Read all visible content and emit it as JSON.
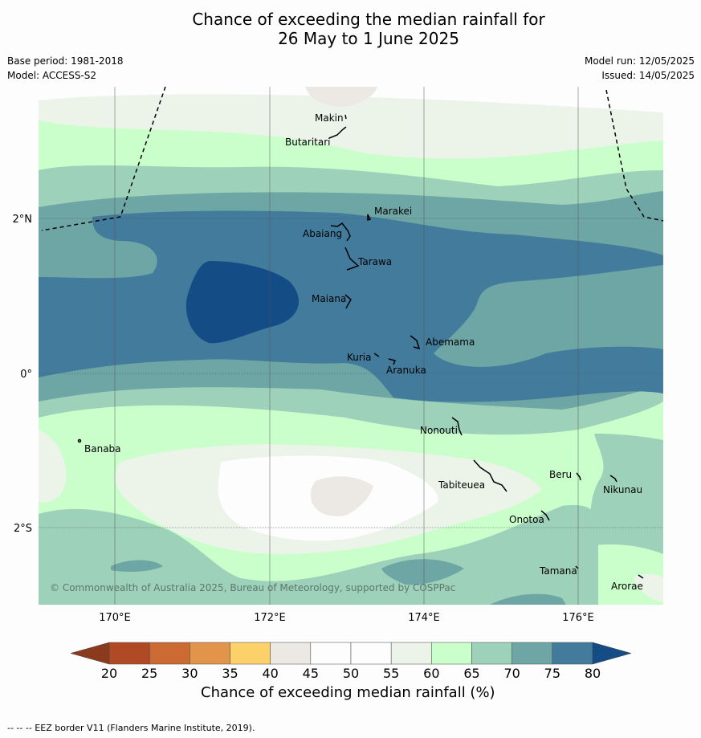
{
  "title_line1": "Chance of exceeding the median rainfall for",
  "title_line2": "26 May to 1 June 2025",
  "base_period": "Base period: 1981-2018",
  "model": "Model: ACCESS-S2",
  "model_run": "Model run: 12/05/2025",
  "issued": "Issued: 14/05/2025",
  "copyright": "© Commonwealth of Australia 2025, Bureau of Meteorology, supported by COSPPac",
  "lat_labels": [
    "2°N",
    "0°",
    "2°S"
  ],
  "lon_labels": [
    "170°E",
    "172°E",
    "174°E",
    "176°E"
  ],
  "islands": [
    {
      "name": "Makin"
    },
    {
      "name": "Butaritari"
    },
    {
      "name": "Marakei"
    },
    {
      "name": "Abaiang"
    },
    {
      "name": "Tarawa"
    },
    {
      "name": "Maiana"
    },
    {
      "name": "Abemama"
    },
    {
      "name": "Kuria"
    },
    {
      "name": "Aranuka"
    },
    {
      "name": "Nonouti"
    },
    {
      "name": "Banaba"
    },
    {
      "name": "Beru"
    },
    {
      "name": "Tabiteuea"
    },
    {
      "name": "Nikunau"
    },
    {
      "name": "Onotoa"
    },
    {
      "name": "Tamana"
    },
    {
      "name": "Arorae"
    }
  ],
  "colorbar": {
    "ticks": [
      "20",
      "25",
      "30",
      "35",
      "40",
      "45",
      "50",
      "55",
      "60",
      "65",
      "70",
      "75",
      "80"
    ],
    "colors": [
      "#b04a25",
      "#cc6a34",
      "#e2944a",
      "#fdd16a",
      "#ece9e4",
      "#fcfdfc",
      "#fcfdfc",
      "#ecf4ea",
      "#cafecb",
      "#9ed1b9",
      "#6ea6a5",
      "#427b9b"
    ],
    "low_color": "#8c3a1e",
    "high_color": "#144c86",
    "label": "Chance of exceeding median rainfall (%)"
  },
  "footer": "--  --  -- EEZ border V11 (Flanders Marine Institute, 2019)."
}
